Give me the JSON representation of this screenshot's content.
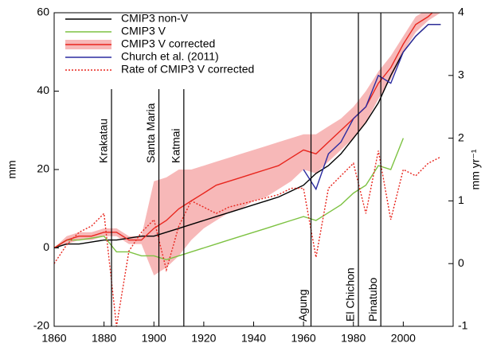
{
  "chart_data": {
    "type": "line",
    "x": [
      1860,
      1865,
      1870,
      1875,
      1880,
      1885,
      1890,
      1895,
      1900,
      1905,
      1910,
      1915,
      1920,
      1925,
      1930,
      1935,
      1940,
      1945,
      1950,
      1955,
      1960,
      1965,
      1970,
      1975,
      1980,
      1985,
      1990,
      1995,
      2000,
      2005,
      2010,
      2015
    ],
    "xlim": [
      1860,
      2020
    ],
    "xticks": [
      1860,
      1880,
      1900,
      1920,
      1940,
      1960,
      1980,
      2000
    ],
    "ylim": [
      -20,
      60
    ],
    "yticks": [
      -20,
      0,
      20,
      40,
      60
    ],
    "y2lim": [
      -1,
      4
    ],
    "y2ticks": [
      -1,
      0,
      1,
      2,
      3,
      4
    ],
    "ylabel": "mm",
    "y2label": "mm yr⁻¹",
    "legend": "upper-left",
    "series": [
      {
        "name": "CMIP3 non-V",
        "color": "#000000",
        "values": [
          0,
          1,
          1,
          1.5,
          2,
          2,
          2.5,
          3,
          3,
          4,
          5,
          6,
          7,
          8,
          9,
          10,
          11,
          12,
          13,
          14.5,
          16,
          19,
          21,
          24,
          28,
          32,
          37,
          44,
          50,
          54,
          57,
          57
        ]
      },
      {
        "name": "CMIP3 V",
        "color": "#7dc242",
        "values": [
          0,
          2,
          2,
          2.5,
          3,
          -1,
          -1,
          -2,
          -2,
          -3,
          -2,
          -1,
          0,
          1,
          2,
          3,
          4,
          5,
          6,
          7,
          8,
          7,
          9,
          11,
          14,
          16,
          21,
          20,
          28,
          null,
          null,
          null
        ]
      },
      {
        "name": "CMIP3 V corrected",
        "color": "#e8261e",
        "band_color": "#f7b8b8",
        "values": [
          0,
          2,
          3,
          3,
          4,
          4,
          2,
          2,
          5,
          7,
          10,
          12,
          14,
          16,
          17,
          18,
          19,
          20,
          21,
          23,
          25,
          24,
          27,
          30,
          33,
          36,
          42,
          46,
          52,
          57,
          59,
          62
        ],
        "band_lower": [
          0,
          1,
          2,
          2,
          3,
          3,
          1,
          1,
          -7,
          -5,
          -2,
          2,
          5,
          7,
          9,
          10,
          12,
          13,
          15,
          17,
          20,
          19,
          22,
          25,
          28,
          32,
          38,
          43,
          50,
          55,
          58,
          60
        ],
        "band_upper": [
          0,
          3,
          4,
          4,
          5,
          5,
          3,
          3,
          17,
          18,
          20,
          20,
          21,
          22,
          23,
          24,
          25,
          26,
          27,
          28,
          29,
          29,
          31,
          33,
          36,
          40,
          45,
          49,
          54,
          59,
          61,
          64
        ]
      },
      {
        "name": "Church et al. (2011)",
        "color": "#2b2ba0",
        "values": [
          null,
          null,
          null,
          null,
          null,
          null,
          null,
          null,
          null,
          null,
          null,
          null,
          null,
          null,
          null,
          null,
          null,
          null,
          null,
          null,
          20,
          15,
          24,
          27,
          33,
          36,
          44,
          42,
          50,
          54,
          57,
          57
        ]
      },
      {
        "name": "Rate of CMIP3 V corrected",
        "color": "#e8261e",
        "axis": "y2",
        "dashed": true,
        "values": [
          0,
          0.3,
          0.5,
          0.6,
          0.8,
          -1,
          0.2,
          0.5,
          0.7,
          -0.1,
          0.6,
          1,
          0.9,
          0.8,
          0.9,
          0.95,
          1,
          1.05,
          1.1,
          1.2,
          1.2,
          0.1,
          1.2,
          1.4,
          1.6,
          0.8,
          1.8,
          0.7,
          1.5,
          1.4,
          1.6,
          1.7
        ]
      }
    ],
    "events": [
      {
        "name": "Krakatau",
        "year": 1883,
        "label_position": "top"
      },
      {
        "name": "Santa Maria",
        "year": 1902,
        "label_position": "top"
      },
      {
        "name": "Katmai",
        "year": 1912,
        "label_position": "top"
      },
      {
        "name": "Agung",
        "year": 1963,
        "label_position": "bottom"
      },
      {
        "name": "El Chichon",
        "year": 1982,
        "label_position": "bottom"
      },
      {
        "name": "Pinatubo",
        "year": 1991,
        "label_position": "bottom"
      }
    ]
  }
}
